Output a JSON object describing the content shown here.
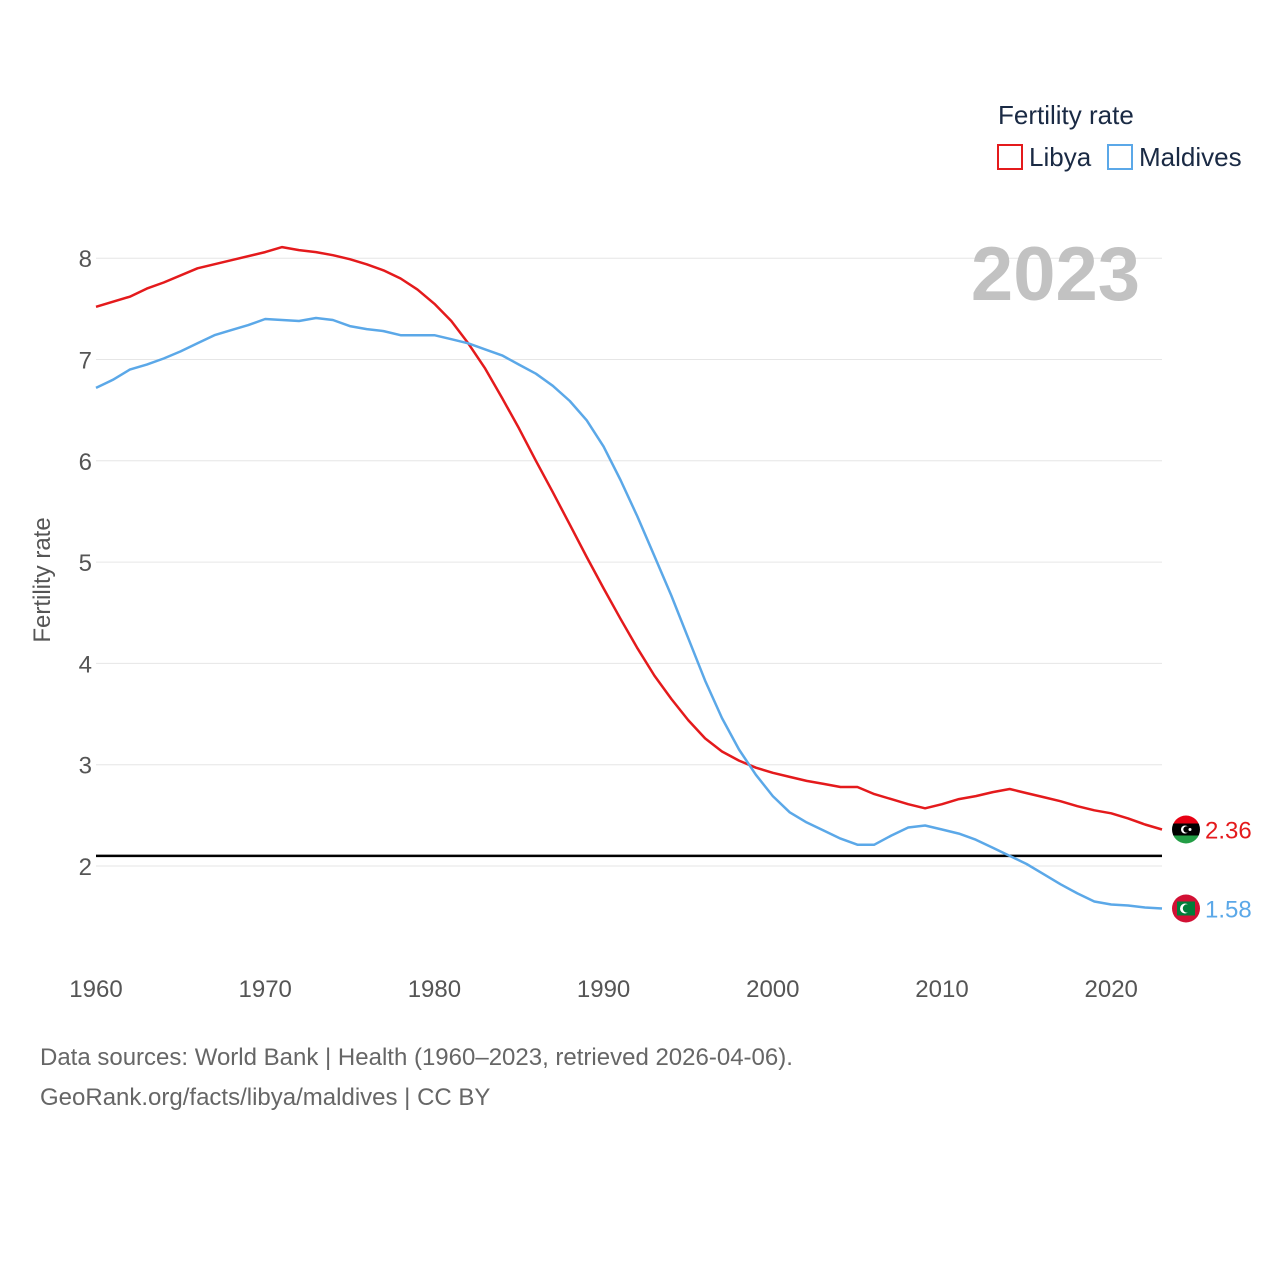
{
  "chart_data": {
    "type": "line",
    "title": "",
    "highlight_year": "2023",
    "xlabel": "",
    "ylabel": "Fertility rate",
    "xlim": [
      1960,
      2023
    ],
    "ylim": [
      1.2,
      8.5
    ],
    "x_ticks": [
      1960,
      1970,
      1980,
      1990,
      2000,
      2010,
      2020
    ],
    "y_ticks": [
      2,
      3,
      4,
      5,
      6,
      7,
      8
    ],
    "grid": true,
    "legend": {
      "title": "Fertility rate",
      "position": "top-right"
    },
    "reference_line": {
      "y": 2.1,
      "color": "#000000"
    },
    "series": [
      {
        "name": "Libya",
        "color": "#e41a1c",
        "end_value_label": "2.36",
        "points": [
          [
            1960,
            7.52
          ],
          [
            1962,
            7.62
          ],
          [
            1963,
            7.7
          ],
          [
            1964,
            7.76
          ],
          [
            1966,
            7.9
          ],
          [
            1968,
            7.98
          ],
          [
            1970,
            8.06
          ],
          [
            1971,
            8.11
          ],
          [
            1972,
            8.08
          ],
          [
            1973,
            8.06
          ],
          [
            1974,
            8.03
          ],
          [
            1975,
            7.99
          ],
          [
            1976,
            7.94
          ],
          [
            1977,
            7.88
          ],
          [
            1978,
            7.8
          ],
          [
            1979,
            7.69
          ],
          [
            1980,
            7.55
          ],
          [
            1981,
            7.38
          ],
          [
            1982,
            7.16
          ],
          [
            1983,
            6.91
          ],
          [
            1984,
            6.62
          ],
          [
            1985,
            6.32
          ],
          [
            1986,
            6.0
          ],
          [
            1987,
            5.69
          ],
          [
            1988,
            5.37
          ],
          [
            1989,
            5.05
          ],
          [
            1990,
            4.74
          ],
          [
            1991,
            4.44
          ],
          [
            1992,
            4.15
          ],
          [
            1993,
            3.88
          ],
          [
            1994,
            3.65
          ],
          [
            1995,
            3.44
          ],
          [
            1996,
            3.26
          ],
          [
            1997,
            3.13
          ],
          [
            1998,
            3.04
          ],
          [
            1999,
            2.97
          ],
          [
            2000,
            2.92
          ],
          [
            2001,
            2.88
          ],
          [
            2002,
            2.84
          ],
          [
            2003,
            2.81
          ],
          [
            2004,
            2.78
          ],
          [
            2005,
            2.78
          ],
          [
            2006,
            2.71
          ],
          [
            2007,
            2.66
          ],
          [
            2008,
            2.61
          ],
          [
            2009,
            2.57
          ],
          [
            2010,
            2.61
          ],
          [
            2011,
            2.66
          ],
          [
            2012,
            2.69
          ],
          [
            2013,
            2.73
          ],
          [
            2014,
            2.76
          ],
          [
            2015,
            2.72
          ],
          [
            2016,
            2.68
          ],
          [
            2017,
            2.64
          ],
          [
            2018,
            2.59
          ],
          [
            2019,
            2.55
          ],
          [
            2020,
            2.52
          ],
          [
            2021,
            2.47
          ],
          [
            2022,
            2.41
          ],
          [
            2023,
            2.36
          ]
        ]
      },
      {
        "name": "Maldives",
        "color": "#5ba8e8",
        "end_value_label": "1.58",
        "points": [
          [
            1960,
            6.72
          ],
          [
            1961,
            6.8
          ],
          [
            1962,
            6.9
          ],
          [
            1963,
            6.95
          ],
          [
            1964,
            7.01
          ],
          [
            1965,
            7.08
          ],
          [
            1966,
            7.16
          ],
          [
            1967,
            7.24
          ],
          [
            1968,
            7.29
          ],
          [
            1969,
            7.34
          ],
          [
            1970,
            7.4
          ],
          [
            1971,
            7.39
          ],
          [
            1972,
            7.38
          ],
          [
            1973,
            7.41
          ],
          [
            1974,
            7.39
          ],
          [
            1975,
            7.33
          ],
          [
            1976,
            7.3
          ],
          [
            1977,
            7.28
          ],
          [
            1978,
            7.24
          ],
          [
            1979,
            7.24
          ],
          [
            1980,
            7.24
          ],
          [
            1981,
            7.2
          ],
          [
            1982,
            7.16
          ],
          [
            1983,
            7.1
          ],
          [
            1984,
            7.04
          ],
          [
            1985,
            6.95
          ],
          [
            1986,
            6.86
          ],
          [
            1987,
            6.74
          ],
          [
            1988,
            6.59
          ],
          [
            1989,
            6.4
          ],
          [
            1990,
            6.14
          ],
          [
            1991,
            5.81
          ],
          [
            1992,
            5.45
          ],
          [
            1993,
            5.06
          ],
          [
            1994,
            4.67
          ],
          [
            1995,
            4.25
          ],
          [
            1996,
            3.83
          ],
          [
            1997,
            3.46
          ],
          [
            1998,
            3.15
          ],
          [
            1999,
            2.9
          ],
          [
            2000,
            2.69
          ],
          [
            2001,
            2.53
          ],
          [
            2002,
            2.43
          ],
          [
            2003,
            2.35
          ],
          [
            2004,
            2.27
          ],
          [
            2005,
            2.21
          ],
          [
            2006,
            2.21
          ],
          [
            2007,
            2.3
          ],
          [
            2008,
            2.38
          ],
          [
            2009,
            2.4
          ],
          [
            2010,
            2.36
          ],
          [
            2011,
            2.32
          ],
          [
            2012,
            2.26
          ],
          [
            2013,
            2.18
          ],
          [
            2014,
            2.1
          ],
          [
            2015,
            2.02
          ],
          [
            2016,
            1.92
          ],
          [
            2017,
            1.82
          ],
          [
            2018,
            1.73
          ],
          [
            2019,
            1.65
          ],
          [
            2020,
            1.62
          ],
          [
            2021,
            1.61
          ],
          [
            2022,
            1.59
          ],
          [
            2023,
            1.58
          ]
        ]
      }
    ]
  },
  "footer": {
    "source_line": "Data sources: World Bank | Health (1960–2023, retrieved 2026-04-06).",
    "attribution_line": "GeoRank.org/facts/libya/maldives | CC BY"
  }
}
